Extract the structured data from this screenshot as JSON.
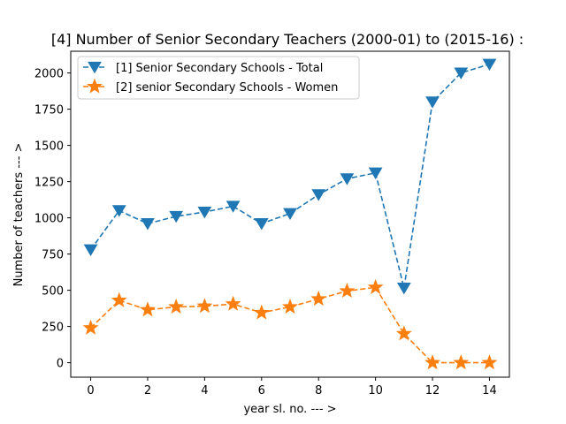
{
  "chart_data": {
    "type": "line",
    "title": "[4] Number of Senior Secondary Teachers (2000-01) to (2015-16) :",
    "xlabel": "year sl. no. --- >",
    "ylabel": "Number of teachers --- >",
    "x": [
      0,
      1,
      2,
      3,
      4,
      5,
      6,
      7,
      8,
      9,
      10,
      11,
      12,
      13,
      14
    ],
    "xlim": [
      -0.7,
      14.7
    ],
    "ylim": [
      -100,
      2150
    ],
    "xticks": [
      0,
      2,
      4,
      6,
      8,
      10,
      12,
      14
    ],
    "yticks": [
      0,
      250,
      500,
      750,
      1000,
      1250,
      1500,
      1750,
      2000
    ],
    "grid": false,
    "legend_position": "top-left",
    "series": [
      {
        "name": "[1] Senior Secondary Schools - Total",
        "marker": "triangle-down",
        "line_style": "dashed",
        "color": "#1f77b4",
        "values": [
          780,
          1050,
          960,
          1010,
          1040,
          1080,
          960,
          1030,
          1160,
          1270,
          1310,
          515,
          1800,
          2000,
          2060
        ]
      },
      {
        "name": "[2] senior Secondary Schools - Women",
        "marker": "star",
        "line_style": "dashed",
        "color": "#ff7f0e",
        "values": [
          240,
          430,
          365,
          385,
          390,
          405,
          345,
          385,
          440,
          495,
          520,
          200,
          0,
          0,
          0
        ]
      }
    ]
  }
}
